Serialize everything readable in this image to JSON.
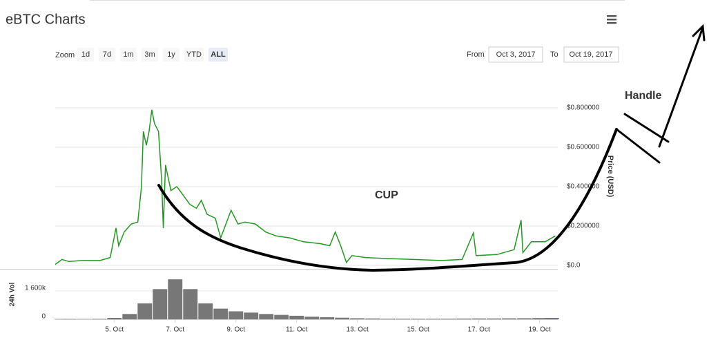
{
  "chart_data": [
    {
      "type": "line",
      "title": "eBTC Charts",
      "ylabel": "Price (USD)",
      "color": "#1f9a1f",
      "grid": true,
      "xlim": [
        3.05,
        19.6
      ],
      "ylim": [
        0,
        1.0
      ],
      "yticks": [
        {
          "value": 0,
          "label": "$0.0"
        },
        {
          "value": 0.2,
          "label": "$0.200000"
        },
        {
          "value": 0.4,
          "label": "$0.400000"
        },
        {
          "value": 0.6,
          "label": "$0.600000"
        },
        {
          "value": 0.8,
          "label": "$0.800000"
        }
      ],
      "x": [
        3.05,
        3.27,
        3.5,
        3.95,
        4.52,
        4.86,
        5.05,
        5.14,
        5.32,
        5.55,
        5.77,
        5.89,
        5.95,
        6.05,
        6.14,
        6.23,
        6.32,
        6.45,
        6.55,
        6.61,
        6.68,
        6.86,
        7.05,
        7.25,
        7.48,
        7.7,
        7.86,
        8.05,
        8.32,
        8.5,
        8.84,
        9.07,
        9.3,
        9.64,
        9.98,
        10.32,
        10.77,
        11.23,
        11.8,
        12.09,
        12.27,
        12.45,
        12.64,
        12.82,
        13.27,
        13.95,
        14.86,
        15.77,
        16.45,
        16.82,
        16.91,
        17.59,
        18.16,
        18.39,
        18.45,
        18.73,
        19.18,
        19.52
      ],
      "values": [
        0.005,
        0.03,
        0.02,
        0.025,
        0.025,
        0.04,
        0.19,
        0.1,
        0.17,
        0.21,
        0.22,
        0.4,
        0.68,
        0.61,
        0.68,
        0.79,
        0.72,
        0.68,
        0.44,
        0.19,
        0.51,
        0.38,
        0.4,
        0.36,
        0.31,
        0.29,
        0.33,
        0.26,
        0.24,
        0.14,
        0.28,
        0.21,
        0.22,
        0.21,
        0.17,
        0.15,
        0.14,
        0.12,
        0.11,
        0.1,
        0.17,
        0.1,
        0.015,
        0.05,
        0.04,
        0.035,
        0.03,
        0.025,
        0.03,
        0.165,
        0.05,
        0.055,
        0.08,
        0.23,
        0.065,
        0.12,
        0.12,
        0.15
      ],
      "annotations": [
        "CUP",
        "Handle"
      ]
    },
    {
      "type": "bar",
      "ylabel": "24h Vol",
      "color": "#777777",
      "grid": true,
      "xlim": [
        3.05,
        19.6
      ],
      "ylim": [
        0,
        2800000
      ],
      "yticks": [
        0,
        {
          "value": 1600000,
          "label": "1 600k"
        }
      ],
      "xticks": [
        {
          "value": 5,
          "label": "5. Oct"
        },
        {
          "value": 7,
          "label": "7. Oct"
        },
        {
          "value": 9,
          "label": "9. Oct"
        },
        {
          "value": 11,
          "label": "11. Oct"
        },
        {
          "value": 13,
          "label": "13. Oct"
        },
        {
          "value": 15,
          "label": "15. Oct"
        },
        {
          "value": 17,
          "label": "17. Oct"
        },
        {
          "value": 19,
          "label": "19. Oct"
        }
      ],
      "x": [
        3.25,
        3.5,
        4.0,
        4.5,
        5.0,
        5.5,
        6.0,
        6.5,
        7.0,
        7.5,
        8.0,
        8.5,
        9.0,
        9.5,
        10.0,
        10.5,
        11.0,
        11.5,
        12.0,
        12.5,
        13.0,
        13.5,
        14.0,
        14.5,
        15.0,
        15.5,
        16.0,
        16.5,
        17.0,
        17.5,
        18.0,
        18.5,
        19.0,
        19.4
      ],
      "values": [
        20000,
        25000,
        20000,
        30000,
        80000,
        300000,
        900000,
        1700000,
        2250000,
        1700000,
        900000,
        600000,
        450000,
        380000,
        300000,
        250000,
        200000,
        150000,
        120000,
        90000,
        60000,
        50000,
        40000,
        40000,
        35000,
        35000,
        40000,
        45000,
        50000,
        50000,
        55000,
        60000,
        70000,
        80000
      ]
    }
  ],
  "range_selector": {
    "zoom_label": "Zoom",
    "buttons": [
      "1d",
      "7d",
      "1m",
      "3m",
      "1y",
      "YTD",
      "ALL"
    ],
    "from_label": "From",
    "from": "Oct 3, 2017",
    "to_label": "To",
    "to": "Oct 19, 2017"
  }
}
